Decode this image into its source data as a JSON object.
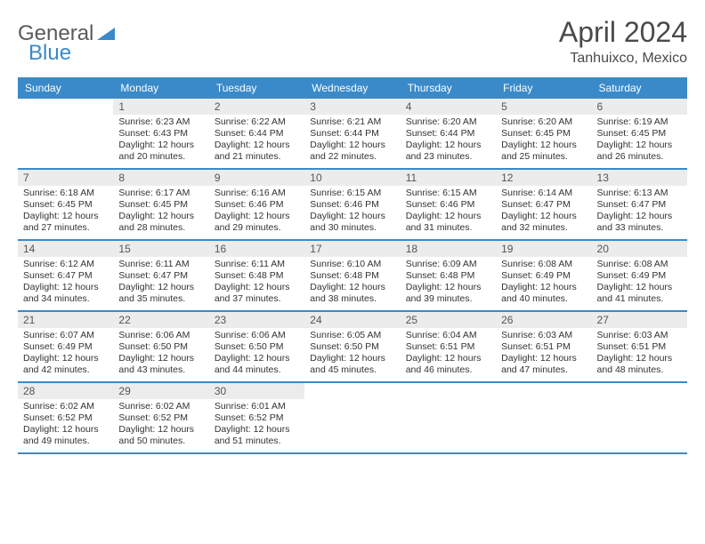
{
  "brand": {
    "word1": "General",
    "word2": "Blue"
  },
  "title": "April 2024",
  "location": "Tanhuixco, Mexico",
  "colors": {
    "accent": "#3a8ac9",
    "header_row_bg": "#ececec",
    "text": "#333333",
    "logo_grey": "#5a5a5a"
  },
  "typography": {
    "title_fontsize": 32,
    "location_fontsize": 16,
    "dayhead_fontsize": 12,
    "cell_fontsize": 10.5
  },
  "day_headers": [
    "Sunday",
    "Monday",
    "Tuesday",
    "Wednesday",
    "Thursday",
    "Friday",
    "Saturday"
  ],
  "weeks": [
    [
      {
        "blank": true
      },
      {
        "n": "1",
        "sunrise": "Sunrise: 6:23 AM",
        "sunset": "Sunset: 6:43 PM",
        "day1": "Daylight: 12 hours",
        "day2": "and 20 minutes."
      },
      {
        "n": "2",
        "sunrise": "Sunrise: 6:22 AM",
        "sunset": "Sunset: 6:44 PM",
        "day1": "Daylight: 12 hours",
        "day2": "and 21 minutes."
      },
      {
        "n": "3",
        "sunrise": "Sunrise: 6:21 AM",
        "sunset": "Sunset: 6:44 PM",
        "day1": "Daylight: 12 hours",
        "day2": "and 22 minutes."
      },
      {
        "n": "4",
        "sunrise": "Sunrise: 6:20 AM",
        "sunset": "Sunset: 6:44 PM",
        "day1": "Daylight: 12 hours",
        "day2": "and 23 minutes."
      },
      {
        "n": "5",
        "sunrise": "Sunrise: 6:20 AM",
        "sunset": "Sunset: 6:45 PM",
        "day1": "Daylight: 12 hours",
        "day2": "and 25 minutes."
      },
      {
        "n": "6",
        "sunrise": "Sunrise: 6:19 AM",
        "sunset": "Sunset: 6:45 PM",
        "day1": "Daylight: 12 hours",
        "day2": "and 26 minutes."
      }
    ],
    [
      {
        "n": "7",
        "sunrise": "Sunrise: 6:18 AM",
        "sunset": "Sunset: 6:45 PM",
        "day1": "Daylight: 12 hours",
        "day2": "and 27 minutes."
      },
      {
        "n": "8",
        "sunrise": "Sunrise: 6:17 AM",
        "sunset": "Sunset: 6:45 PM",
        "day1": "Daylight: 12 hours",
        "day2": "and 28 minutes."
      },
      {
        "n": "9",
        "sunrise": "Sunrise: 6:16 AM",
        "sunset": "Sunset: 6:46 PM",
        "day1": "Daylight: 12 hours",
        "day2": "and 29 minutes."
      },
      {
        "n": "10",
        "sunrise": "Sunrise: 6:15 AM",
        "sunset": "Sunset: 6:46 PM",
        "day1": "Daylight: 12 hours",
        "day2": "and 30 minutes."
      },
      {
        "n": "11",
        "sunrise": "Sunrise: 6:15 AM",
        "sunset": "Sunset: 6:46 PM",
        "day1": "Daylight: 12 hours",
        "day2": "and 31 minutes."
      },
      {
        "n": "12",
        "sunrise": "Sunrise: 6:14 AM",
        "sunset": "Sunset: 6:47 PM",
        "day1": "Daylight: 12 hours",
        "day2": "and 32 minutes."
      },
      {
        "n": "13",
        "sunrise": "Sunrise: 6:13 AM",
        "sunset": "Sunset: 6:47 PM",
        "day1": "Daylight: 12 hours",
        "day2": "and 33 minutes."
      }
    ],
    [
      {
        "n": "14",
        "sunrise": "Sunrise: 6:12 AM",
        "sunset": "Sunset: 6:47 PM",
        "day1": "Daylight: 12 hours",
        "day2": "and 34 minutes."
      },
      {
        "n": "15",
        "sunrise": "Sunrise: 6:11 AM",
        "sunset": "Sunset: 6:47 PM",
        "day1": "Daylight: 12 hours",
        "day2": "and 35 minutes."
      },
      {
        "n": "16",
        "sunrise": "Sunrise: 6:11 AM",
        "sunset": "Sunset: 6:48 PM",
        "day1": "Daylight: 12 hours",
        "day2": "and 37 minutes."
      },
      {
        "n": "17",
        "sunrise": "Sunrise: 6:10 AM",
        "sunset": "Sunset: 6:48 PM",
        "day1": "Daylight: 12 hours",
        "day2": "and 38 minutes."
      },
      {
        "n": "18",
        "sunrise": "Sunrise: 6:09 AM",
        "sunset": "Sunset: 6:48 PM",
        "day1": "Daylight: 12 hours",
        "day2": "and 39 minutes."
      },
      {
        "n": "19",
        "sunrise": "Sunrise: 6:08 AM",
        "sunset": "Sunset: 6:49 PM",
        "day1": "Daylight: 12 hours",
        "day2": "and 40 minutes."
      },
      {
        "n": "20",
        "sunrise": "Sunrise: 6:08 AM",
        "sunset": "Sunset: 6:49 PM",
        "day1": "Daylight: 12 hours",
        "day2": "and 41 minutes."
      }
    ],
    [
      {
        "n": "21",
        "sunrise": "Sunrise: 6:07 AM",
        "sunset": "Sunset: 6:49 PM",
        "day1": "Daylight: 12 hours",
        "day2": "and 42 minutes."
      },
      {
        "n": "22",
        "sunrise": "Sunrise: 6:06 AM",
        "sunset": "Sunset: 6:50 PM",
        "day1": "Daylight: 12 hours",
        "day2": "and 43 minutes."
      },
      {
        "n": "23",
        "sunrise": "Sunrise: 6:06 AM",
        "sunset": "Sunset: 6:50 PM",
        "day1": "Daylight: 12 hours",
        "day2": "and 44 minutes."
      },
      {
        "n": "24",
        "sunrise": "Sunrise: 6:05 AM",
        "sunset": "Sunset: 6:50 PM",
        "day1": "Daylight: 12 hours",
        "day2": "and 45 minutes."
      },
      {
        "n": "25",
        "sunrise": "Sunrise: 6:04 AM",
        "sunset": "Sunset: 6:51 PM",
        "day1": "Daylight: 12 hours",
        "day2": "and 46 minutes."
      },
      {
        "n": "26",
        "sunrise": "Sunrise: 6:03 AM",
        "sunset": "Sunset: 6:51 PM",
        "day1": "Daylight: 12 hours",
        "day2": "and 47 minutes."
      },
      {
        "n": "27",
        "sunrise": "Sunrise: 6:03 AM",
        "sunset": "Sunset: 6:51 PM",
        "day1": "Daylight: 12 hours",
        "day2": "and 48 minutes."
      }
    ],
    [
      {
        "n": "28",
        "sunrise": "Sunrise: 6:02 AM",
        "sunset": "Sunset: 6:52 PM",
        "day1": "Daylight: 12 hours",
        "day2": "and 49 minutes."
      },
      {
        "n": "29",
        "sunrise": "Sunrise: 6:02 AM",
        "sunset": "Sunset: 6:52 PM",
        "day1": "Daylight: 12 hours",
        "day2": "and 50 minutes."
      },
      {
        "n": "30",
        "sunrise": "Sunrise: 6:01 AM",
        "sunset": "Sunset: 6:52 PM",
        "day1": "Daylight: 12 hours",
        "day2": "and 51 minutes."
      },
      {
        "blank": true
      },
      {
        "blank": true
      },
      {
        "blank": true
      },
      {
        "blank": true
      }
    ]
  ]
}
